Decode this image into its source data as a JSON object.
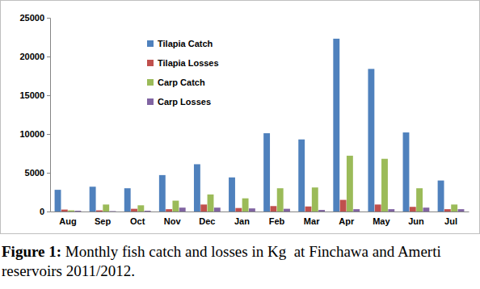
{
  "chart_data": {
    "type": "bar",
    "title": "Figure 1: Monthly fish catch and losses in Kg  at Finchawa and Amerti reservoirs 2011/2012.",
    "categories": [
      "Aug",
      "Sep",
      "Oct",
      "Nov",
      "Dec",
      "Jan",
      "Feb",
      "Mar",
      "Apr",
      "May",
      "Jun",
      "Jul"
    ],
    "series": [
      {
        "name": "Tilapia Catch",
        "color": "#4F81BD",
        "values": [
          2800,
          3200,
          3000,
          4700,
          6100,
          4400,
          10100,
          9300,
          22300,
          18400,
          10200,
          4000
        ]
      },
      {
        "name": "Tilapia Losses",
        "color": "#C0504D",
        "values": [
          250,
          150,
          350,
          300,
          900,
          450,
          700,
          650,
          1500,
          900,
          600,
          300
        ]
      },
      {
        "name": "Carp Catch",
        "color": "#9BBB59",
        "values": [
          150,
          900,
          800,
          1400,
          2200,
          1700,
          3000,
          3100,
          7200,
          6800,
          3000,
          900
        ]
      },
      {
        "name": "Carp Losses",
        "color": "#8064A2",
        "values": [
          100,
          50,
          100,
          500,
          500,
          400,
          350,
          200,
          300,
          300,
          500,
          300
        ]
      }
    ],
    "ylim": [
      0,
      25000
    ],
    "yticks": [
      0,
      5000,
      10000,
      15000,
      20000,
      25000
    ],
    "grid": false,
    "legend": "top-left"
  }
}
